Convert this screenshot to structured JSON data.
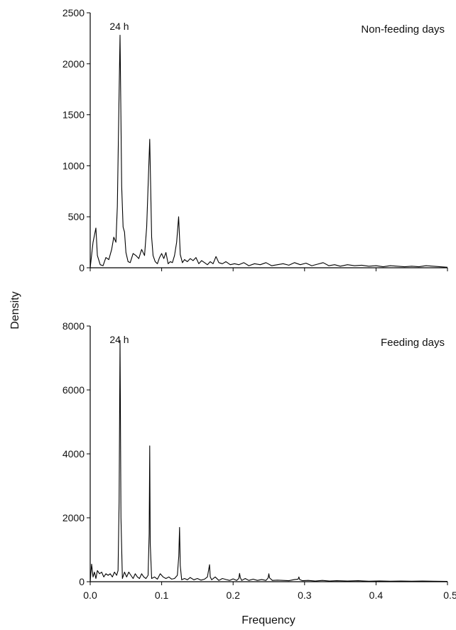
{
  "figure": {
    "ylabel": "Density",
    "xlabel": "Frequency"
  },
  "chart_data": [
    {
      "type": "line",
      "title": "Non-feeding days",
      "annotation": "24 h",
      "xlim": [
        0,
        0.5
      ],
      "ylim": [
        0,
        2500
      ],
      "yticks": [
        0,
        500,
        1000,
        1500,
        2000,
        2500
      ],
      "ytick_labels": [
        "0",
        "500",
        "1000",
        "1500",
        "2000",
        "2500"
      ],
      "xticks": [
        0,
        0.1,
        0.2,
        0.3,
        0.4,
        0.5
      ],
      "xtick_labels": [],
      "grid": false,
      "series": [
        {
          "color": "#000000",
          "x": [
            0,
            0.004,
            0.008,
            0.01,
            0.014,
            0.018,
            0.022,
            0.026,
            0.03,
            0.033,
            0.036,
            0.038,
            0.04,
            0.0417,
            0.044,
            0.046,
            0.048,
            0.05,
            0.053,
            0.056,
            0.06,
            0.064,
            0.068,
            0.072,
            0.076,
            0.079,
            0.081,
            0.0833,
            0.086,
            0.088,
            0.091,
            0.094,
            0.097,
            0.1,
            0.103,
            0.106,
            0.109,
            0.112,
            0.115,
            0.118,
            0.121,
            0.1238,
            0.126,
            0.129,
            0.132,
            0.136,
            0.14,
            0.144,
            0.148,
            0.152,
            0.156,
            0.16,
            0.164,
            0.168,
            0.172,
            0.176,
            0.18,
            0.185,
            0.19,
            0.196,
            0.202,
            0.208,
            0.215,
            0.222,
            0.23,
            0.238,
            0.246,
            0.254,
            0.262,
            0.27,
            0.278,
            0.286,
            0.294,
            0.302,
            0.31,
            0.318,
            0.326,
            0.334,
            0.342,
            0.35,
            0.36,
            0.37,
            0.38,
            0.39,
            0.4,
            0.41,
            0.42,
            0.43,
            0.44,
            0.45,
            0.46,
            0.47,
            0.48,
            0.49,
            0.5
          ],
          "y": [
            0,
            250,
            390,
            120,
            30,
            20,
            100,
            80,
            180,
            300,
            250,
            600,
            1500,
            2280,
            800,
            400,
            350,
            150,
            60,
            50,
            140,
            120,
            90,
            180,
            120,
            400,
            800,
            1260,
            300,
            120,
            60,
            40,
            100,
            140,
            90,
            150,
            40,
            60,
            50,
            120,
            250,
            500,
            130,
            50,
            80,
            60,
            90,
            70,
            100,
            40,
            70,
            50,
            30,
            60,
            40,
            110,
            50,
            40,
            60,
            30,
            40,
            30,
            50,
            20,
            40,
            30,
            50,
            20,
            30,
            40,
            25,
            50,
            30,
            45,
            20,
            35,
            50,
            20,
            30,
            15,
            30,
            20,
            25,
            15,
            20,
            10,
            20,
            15,
            10,
            15,
            10,
            20,
            15,
            10,
            5
          ]
        }
      ]
    },
    {
      "type": "line",
      "title": "Feeding days",
      "annotation": "24 h",
      "xlim": [
        0,
        0.5
      ],
      "ylim": [
        0,
        8000
      ],
      "yticks": [
        0,
        2000,
        4000,
        6000,
        8000
      ],
      "ytick_labels": [
        "0",
        "2000",
        "4000",
        "6000",
        "8000"
      ],
      "xticks": [
        0,
        0.1,
        0.2,
        0.3,
        0.4,
        0.5
      ],
      "xtick_labels": [
        "0.0",
        "0.1",
        "0.2",
        "0.3",
        "0.4",
        "0.5"
      ],
      "grid": false,
      "series": [
        {
          "color": "#000000",
          "x": [
            0,
            0.002,
            0.004,
            0.006,
            0.008,
            0.01,
            0.013,
            0.016,
            0.019,
            0.022,
            0.025,
            0.028,
            0.031,
            0.034,
            0.037,
            0.039,
            0.0405,
            0.0417,
            0.043,
            0.045,
            0.048,
            0.051,
            0.054,
            0.057,
            0.06,
            0.063,
            0.066,
            0.069,
            0.072,
            0.075,
            0.078,
            0.081,
            0.0825,
            0.0833,
            0.084,
            0.086,
            0.09,
            0.094,
            0.098,
            0.102,
            0.106,
            0.11,
            0.114,
            0.118,
            0.122,
            0.124,
            0.125,
            0.126,
            0.128,
            0.132,
            0.136,
            0.14,
            0.145,
            0.15,
            0.155,
            0.16,
            0.164,
            0.166,
            0.167,
            0.168,
            0.17,
            0.175,
            0.18,
            0.185,
            0.19,
            0.195,
            0.2,
            0.205,
            0.208,
            0.209,
            0.21,
            0.212,
            0.217,
            0.222,
            0.228,
            0.234,
            0.24,
            0.246,
            0.249,
            0.25,
            0.251,
            0.255,
            0.262,
            0.27,
            0.278,
            0.286,
            0.291,
            0.292,
            0.293,
            0.297,
            0.305,
            0.315,
            0.325,
            0.335,
            0.345,
            0.36,
            0.375,
            0.39,
            0.405,
            0.42,
            0.435,
            0.45,
            0.465,
            0.48,
            0.5
          ],
          "y": [
            0,
            550,
            150,
            300,
            100,
            350,
            250,
            300,
            150,
            250,
            200,
            250,
            150,
            300,
            200,
            350,
            2500,
            7550,
            2000,
            100,
            300,
            150,
            300,
            200,
            100,
            250,
            150,
            100,
            250,
            150,
            100,
            200,
            1500,
            4250,
            1200,
            100,
            150,
            80,
            250,
            150,
            100,
            150,
            80,
            100,
            200,
            800,
            1700,
            500,
            60,
            100,
            60,
            130,
            60,
            100,
            50,
            80,
            150,
            400,
            530,
            150,
            60,
            150,
            40,
            100,
            70,
            40,
            90,
            40,
            100,
            260,
            130,
            40,
            100,
            40,
            80,
            40,
            70,
            40,
            120,
            250,
            120,
            40,
            50,
            40,
            30,
            70,
            80,
            150,
            70,
            30,
            40,
            20,
            40,
            20,
            30,
            20,
            30,
            15,
            25,
            15,
            20,
            15,
            20,
            15,
            10
          ]
        }
      ]
    }
  ]
}
